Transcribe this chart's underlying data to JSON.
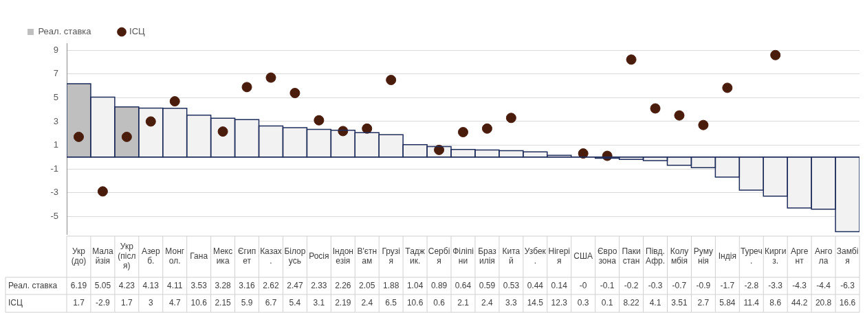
{
  "chart_data": {
    "type": "bar",
    "categories": [
      "Укр (до)",
      "Малайзія",
      "Укр (після)",
      "Азерб.",
      "Монгол.",
      "Гана",
      "Мексика",
      "Єгипет",
      "Казах.",
      "Білорусь",
      "Росія",
      "Індонезія",
      "В'єтнам",
      "Грузія",
      "Таджик.",
      "Сербія",
      "Філіпіни",
      "Бразилія",
      "Китай",
      "Узбек.",
      "Нігерія",
      "США",
      "Єврозона",
      "Пакистан",
      "Півд. Афр.",
      "Колумбія",
      "Румунія",
      "Індія",
      "Туреч.",
      "Киргиз.",
      "Аргент",
      "Ангола",
      "Замбія"
    ],
    "series": [
      {
        "name": "Реал. ставка",
        "color": "#1f2d5c",
        "colors": [
          "#bfbfbf",
          "#f2f2f2",
          "#bfbfbf",
          "#f2f2f2",
          "#f2f2f2",
          "#f2f2f2",
          "#f2f2f2",
          "#f2f2f2",
          "#f2f2f2",
          "#f2f2f2",
          "#f2f2f2",
          "#f2f2f2",
          "#f2f2f2",
          "#f2f2f2",
          "#f2f2f2",
          "#f2f2f2",
          "#f2f2f2",
          "#f2f2f2",
          "#f2f2f2",
          "#f2f2f2",
          "#f2f2f2",
          "#f2f2f2",
          "#f2f2f2",
          "#f2f2f2",
          "#f2f2f2",
          "#f2f2f2",
          "#f2f2f2",
          "#f2f2f2",
          "#f2f2f2",
          "#f2f2f2",
          "#f2f2f2",
          "#f2f2f2",
          "#f2f2f2"
        ],
        "values": [
          6.19,
          5.05,
          4.23,
          4.13,
          4.11,
          3.53,
          3.28,
          3.16,
          2.62,
          2.47,
          2.33,
          2.26,
          2.05,
          1.88,
          1.04,
          0.89,
          0.64,
          0.59,
          0.53,
          0.44,
          0.14,
          0,
          -0.1,
          -0.2,
          -0.3,
          -0.7,
          -0.9,
          -1.7,
          -2.8,
          -3.3,
          -4.3,
          -4.4,
          -6.3
        ],
        "value_labels": [
          "6.19",
          "5.05",
          "4.23",
          "4.13",
          "4.11",
          "3.53",
          "3.28",
          "3.16",
          "2.62",
          "2.47",
          "2.33",
          "2.26",
          "2.05",
          "1.88",
          "1.04",
          "0.89",
          "0.64",
          "0.59",
          "0.53",
          "0.44",
          "0.14",
          "-0",
          "-0.1",
          "-0.2",
          "-0.3",
          "-0.7",
          "-0.9",
          "-1.7",
          "-2.8",
          "-3.3",
          "-4.3",
          "-4.4",
          "-6.3"
        ]
      },
      {
        "type": "scatter",
        "name": "ІСЦ",
        "color": "#4a1c0c",
        "values": [
          1.7,
          -2.9,
          1.7,
          3,
          4.7,
          null,
          2.15,
          5.9,
          6.7,
          5.4,
          3.1,
          2.19,
          2.4,
          6.5,
          null,
          0.6,
          2.1,
          2.4,
          3.3,
          null,
          null,
          0.3,
          0.1,
          8.22,
          4.1,
          3.51,
          2.7,
          5.84,
          null,
          8.6,
          null,
          null,
          null
        ],
        "value_labels": [
          "1.7",
          "-2.9",
          "1.7",
          "3",
          "4.7",
          "10.6",
          "2.15",
          "5.9",
          "6.7",
          "5.4",
          "3.1",
          "2.19",
          "2.4",
          "6.5",
          "10.6",
          "0.6",
          "2.1",
          "2.4",
          "3.3",
          "14.5",
          "12.3",
          "0.3",
          "0.1",
          "8.22",
          "4.1",
          "3.51",
          "2.7",
          "5.84",
          "11.4",
          "8.6",
          "44.2",
          "20.8",
          "16.6"
        ]
      }
    ],
    "ylim": [
      -6.5,
      9.6
    ],
    "yticks": [
      -5,
      -3,
      -1,
      1,
      3,
      5,
      7,
      9
    ],
    "grid": "y",
    "legend": "top left",
    "marker": "circle"
  }
}
